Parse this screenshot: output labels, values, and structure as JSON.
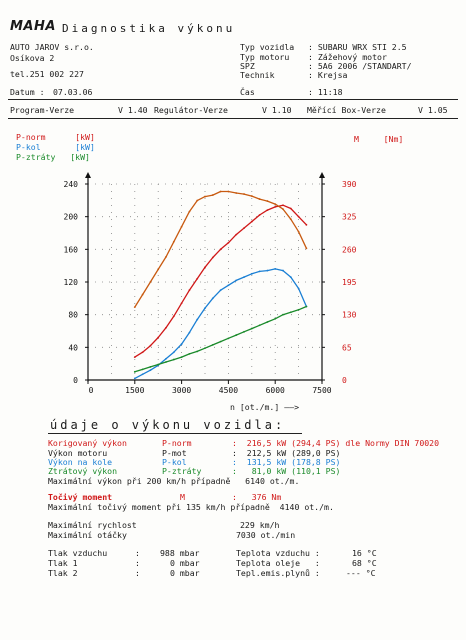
{
  "header": {
    "logo": "MAHA",
    "title": "Diagnostika výkonu"
  },
  "customer": {
    "name": "AUTO JAROV s.r.o.",
    "street": "Osíkova 2",
    "phone": "tel.251 002 227"
  },
  "vehicle": [
    {
      "label": "Typ vozidla",
      "value": "SUBARU WRX STI 2.5"
    },
    {
      "label": "Typ motoru",
      "value": "Zážehový motor"
    },
    {
      "label": "SPZ",
      "value": "5A6 2006 /STANDART/"
    },
    {
      "label": "Technik",
      "value": "Krejsa"
    }
  ],
  "datum": {
    "label": "Datum :",
    "value": "07.03.06"
  },
  "cas": {
    "label": "Čas",
    "value": "11:18"
  },
  "versions": [
    {
      "label": "Program-Verze",
      "value": "V 1.40"
    },
    {
      "label": "Regulátor-Verze",
      "value": "V 1.10"
    },
    {
      "label": "Měřící Box-Verze",
      "value": "V 1.05"
    }
  ],
  "legend": [
    {
      "name": "P-norm",
      "unit": "[kW]",
      "color": "#d01818"
    },
    {
      "name": "P-kol",
      "unit": "[kW]",
      "color": "#1a7fd4"
    },
    {
      "name": "P-ztráty",
      "unit": "[kW]",
      "color": "#1a8a2a"
    }
  ],
  "right_legend": {
    "name": "M",
    "unit": "[Nm]"
  },
  "chart_data": {
    "type": "line",
    "x": [
      1500,
      1750,
      2000,
      2250,
      2500,
      2750,
      3000,
      3250,
      3500,
      3750,
      4000,
      4250,
      4500,
      4750,
      5000,
      5250,
      5500,
      5750,
      6000,
      6250,
      6500,
      6750,
      7000
    ],
    "xlabel": "n [ot./m.] ——>",
    "xlim": [
      0,
      7500
    ],
    "xticks": [
      "0",
      "1500",
      "3000",
      "4500",
      "6000",
      "7500"
    ],
    "ylim": [
      0,
      240
    ],
    "yticks": [
      "0",
      "40",
      "80",
      "120",
      "160",
      "200",
      "240"
    ],
    "y2lim": [
      0,
      390
    ],
    "y2ticks": [
      "0",
      "65",
      "130",
      "195",
      "260",
      "325",
      "390"
    ],
    "series": [
      {
        "name": "P-norm",
        "axis": "left",
        "color": "#d01818",
        "values": [
          28,
          34,
          42,
          52,
          64,
          78,
          94,
          110,
          124,
          138,
          150,
          160,
          168,
          178,
          186,
          194,
          202,
          208,
          212,
          214,
          210,
          200,
          190
        ]
      },
      {
        "name": "P-kol",
        "axis": "left",
        "color": "#1a7fd4",
        "values": [
          2,
          7,
          12,
          18,
          26,
          34,
          44,
          58,
          74,
          88,
          100,
          110,
          116,
          122,
          126,
          130,
          133,
          134,
          136,
          134,
          126,
          112,
          90
        ]
      },
      {
        "name": "P-ztráty",
        "axis": "left",
        "color": "#1a8a2a",
        "values": [
          10,
          13,
          16,
          19,
          22,
          25,
          28,
          32,
          35,
          39,
          43,
          47,
          51,
          55,
          59,
          63,
          67,
          71,
          75,
          80,
          83,
          86,
          90
        ]
      },
      {
        "name": "M",
        "axis": "right",
        "color": "#c85a10",
        "values": [
          145,
          170,
          195,
          220,
          245,
          275,
          305,
          335,
          357,
          365,
          368,
          375,
          375,
          372,
          370,
          366,
          360,
          356,
          350,
          340,
          320,
          295,
          262
        ]
      }
    ]
  },
  "section_title": "údaje o výkonu vozidla:",
  "results": [
    {
      "label": "Korigovaný výkon",
      "name": "P-norm",
      "value": ":  216,5 kW (294,4 PS) dle Normy DIN 70020",
      "color": "red"
    },
    {
      "label": "Výkon motoru",
      "name": "P-mot",
      "value": ":  212,5 kW (289,0 PS)",
      "color": ""
    },
    {
      "label": "Výkon na kole",
      "name": "P-kol",
      "value": ":  131,5 kW (178,8 PS)",
      "color": "blue"
    },
    {
      "label": "Ztrátový výkon",
      "name": "P-ztráty",
      "value": ":   81,0 kW (110,1 PS)",
      "color": "green"
    }
  ],
  "max_power_line": "Maximální výkon při 200 km/h případně   6140 ot./m.",
  "torque": {
    "label": "Točivý moment",
    "name": "M",
    "value": ":   376 Nm"
  },
  "max_torque_line": "Maximální točivý moment při 135 km/h případně  4140 ot./m.",
  "maxima": [
    {
      "label": "Maximální rychlost",
      "value": "229 km/h"
    },
    {
      "label": "Maximální otáčky",
      "value": "7030 ot./min"
    }
  ],
  "pressures": [
    {
      "label": "Tlak vzduchu",
      "value": "988 mbar"
    },
    {
      "label": "Tlak 1",
      "value": "0 mbar"
    },
    {
      "label": "Tlak 2",
      "value": "0 mbar"
    }
  ],
  "temperatures": [
    {
      "label": "Teplota vzduchu :",
      "value": "16 °C"
    },
    {
      "label": "Teplota oleje   :",
      "value": "68 °C"
    },
    {
      "label": "Tepl.emis.plynů :",
      "value": "--- °C"
    }
  ]
}
